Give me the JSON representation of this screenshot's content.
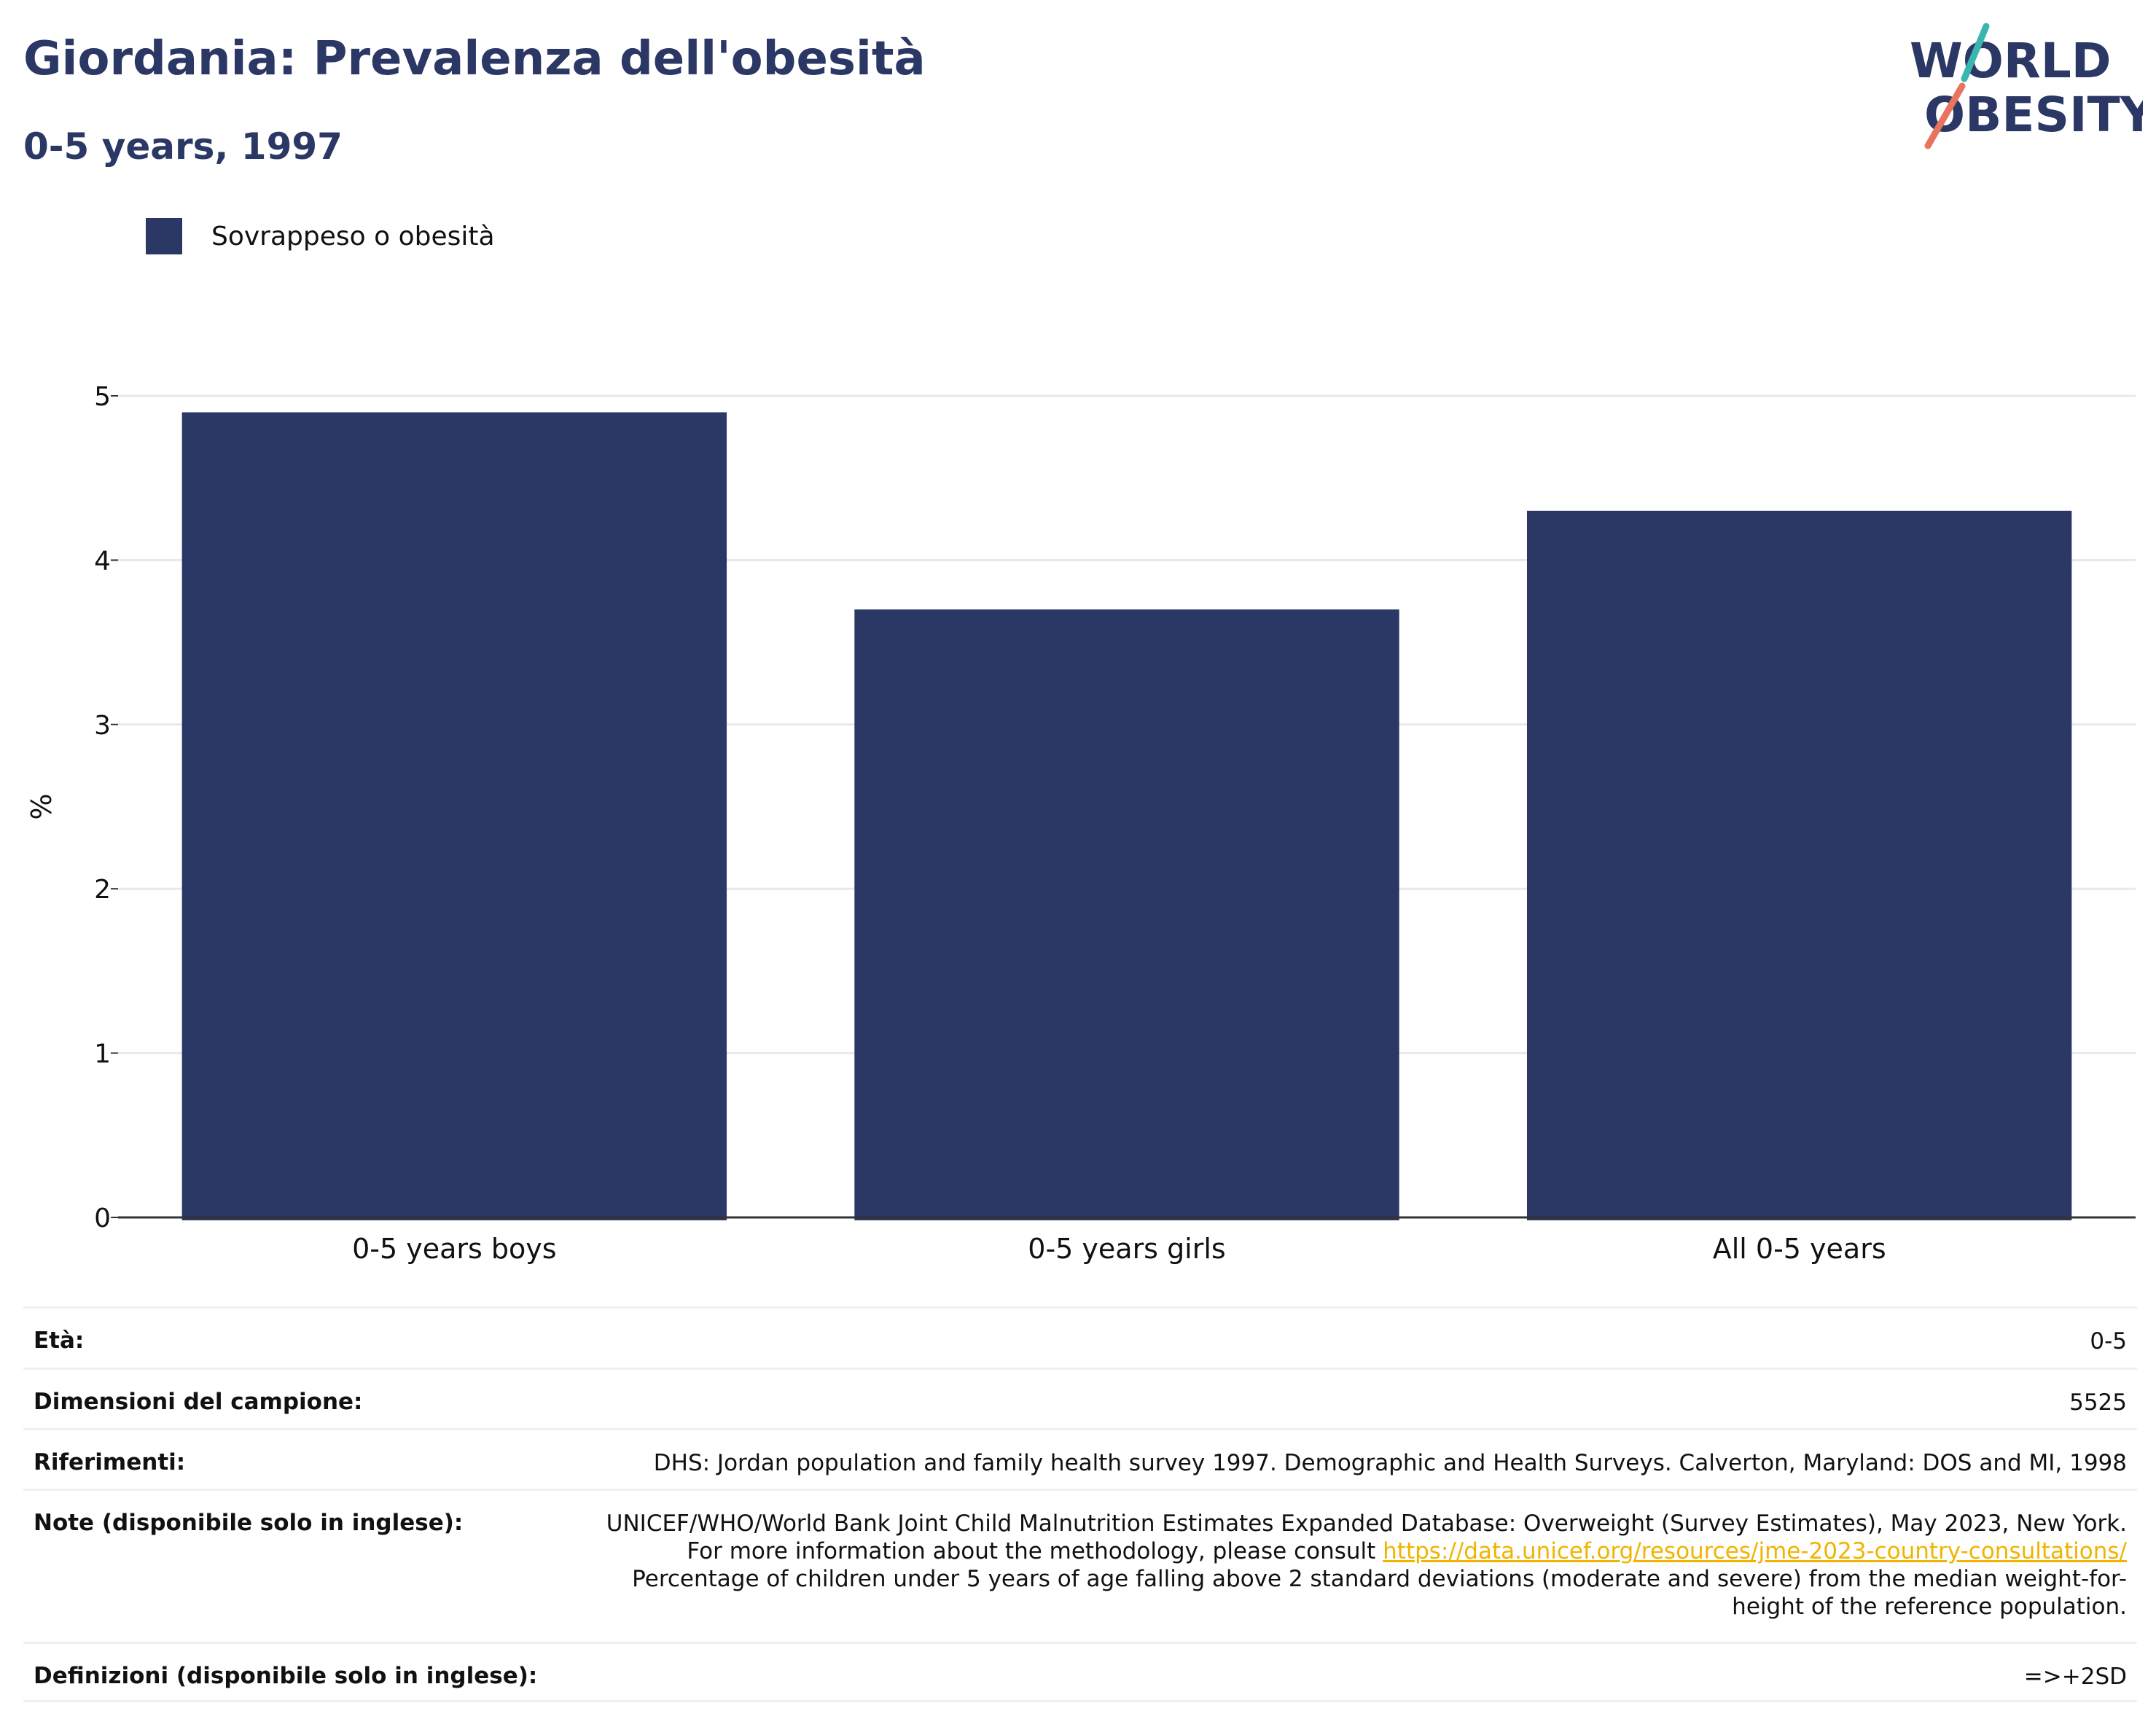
{
  "header": {
    "title": "Giordania: Prevalenza dell'obesità",
    "subtitle": "0-5 years, 1997"
  },
  "logo": {
    "line1": "WORLD",
    "line2": "OBESITY",
    "accent_teal": "#3ab5b0",
    "accent_coral": "#e8735f"
  },
  "colors": {
    "primary": "#2b3764",
    "grid": "#e6e8ee",
    "link": "#f0b400"
  },
  "chart_data": {
    "type": "bar",
    "categories": [
      "0-5 years boys",
      "0-5 years girls",
      "All 0-5 years"
    ],
    "series": [
      {
        "name": "Sovrappeso o obesità",
        "values": [
          4.9,
          3.7,
          4.3
        ],
        "color": "#2b3764"
      }
    ],
    "title": "",
    "xlabel": "",
    "ylabel": "%",
    "ylim": [
      0,
      5
    ],
    "yticks": [
      0,
      1,
      2,
      3,
      4,
      5
    ],
    "grid": true,
    "legend_position": "top-left"
  },
  "info": {
    "age_label": "Età:",
    "age_value": "0-5",
    "sample_label": "Dimensioni del campione:",
    "sample_value": "5525",
    "ref_label": "Riferimenti:",
    "ref_value": "DHS: Jordan population and family health survey 1997. Demographic and Health Surveys. Calverton, Maryland: DOS and MI, 1998",
    "notes_label": "Note (disponibile solo in inglese):",
    "notes_text1": "UNICEF/WHO/World Bank Joint Child Malnutrition Estimates Expanded Database: Overweight (Survey Estimates), May 2023, New York. For more information about the methodology, please consult ",
    "notes_link": "https://data.unicef.org/resources/jme-2023-country-consultations/",
    "notes_text2": "Percentage of children under 5 years of age falling above 2 standard deviations (moderate and severe) from the median weight-for-height of the reference population.",
    "def_label": "Definizioni (disponibile solo in inglese):",
    "def_value": "=>+2SD"
  }
}
